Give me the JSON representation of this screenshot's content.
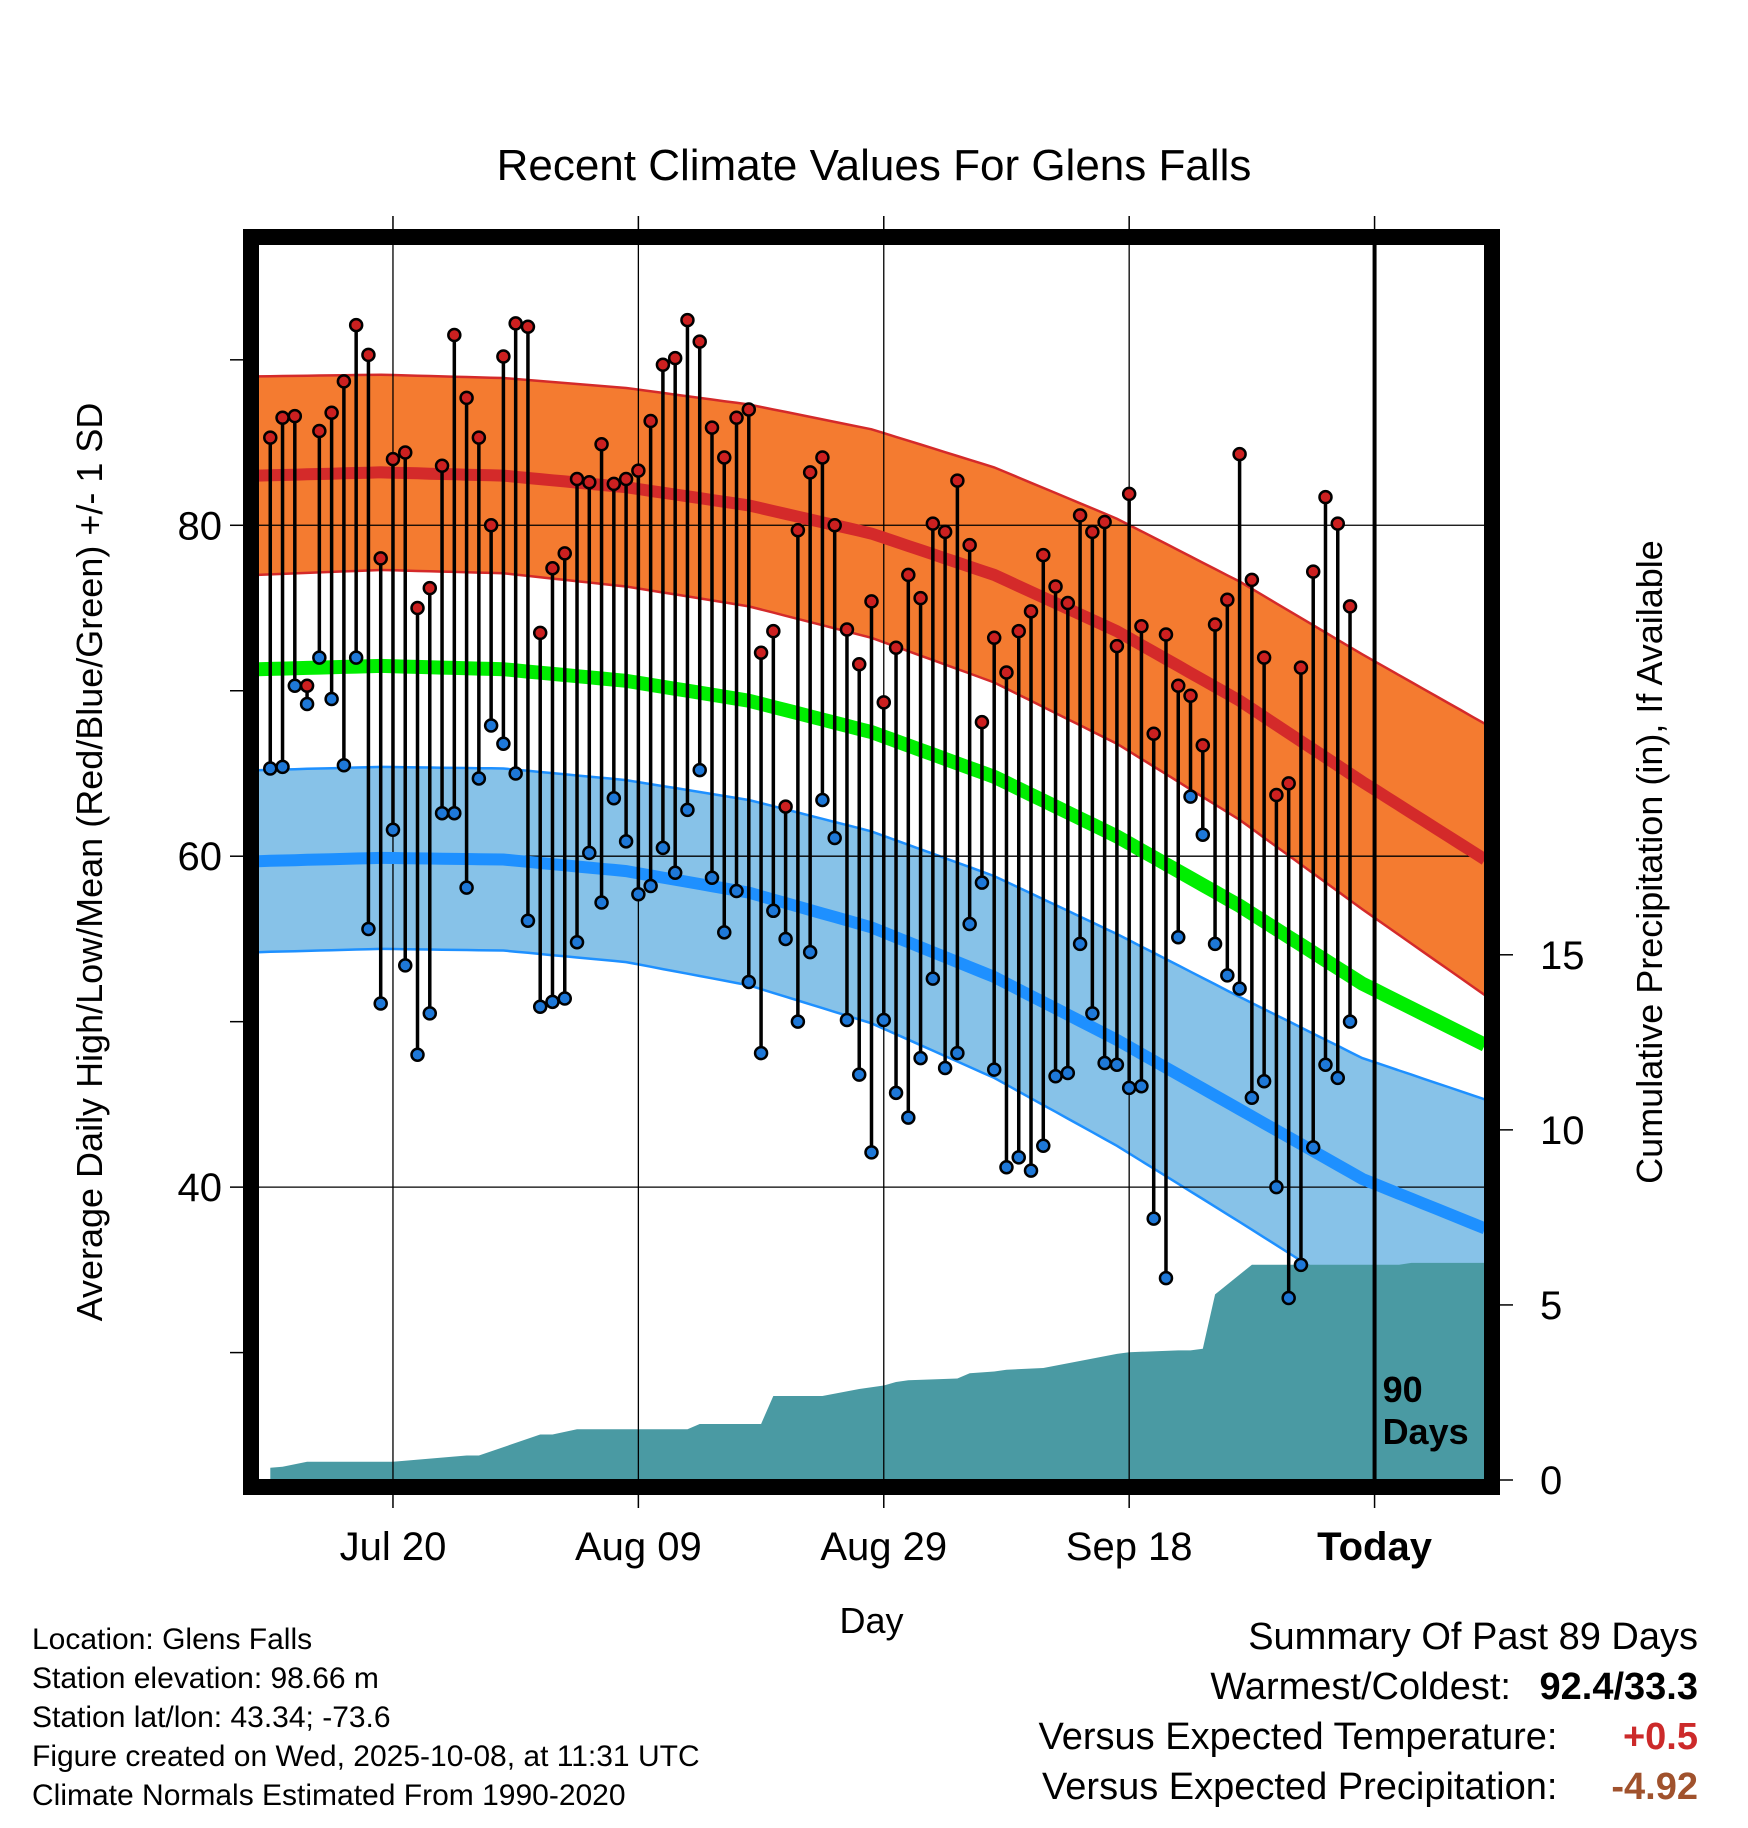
{
  "chart_data": {
    "type": "line",
    "title": "Recent Climate Values For Glens Falls",
    "xlabel": "Day",
    "ylabel": "Average Daily High/Low/Mean (Red/Blue/Green) +/- 1 SD",
    "y2label": "Cumulative Precipitation (in), If Available",
    "x_tick_labels": [
      "Jul 20",
      "Aug 09",
      "Aug 29",
      "Sep 18",
      "Today"
    ],
    "x_tick_days": [
      10,
      30,
      50,
      70,
      90
    ],
    "xlim": [
      -1,
      99
    ],
    "ylim": [
      22.3,
      97.0
    ],
    "y_ticks_labeled": [
      40,
      60,
      80
    ],
    "y_ticks_minor": [
      30,
      50,
      70,
      90
    ],
    "y2_ticks": [
      0,
      5,
      10,
      15
    ],
    "y2lim": [
      0,
      35.3
    ],
    "today_marker_label": "90\nDays",
    "colors": {
      "normal_high_band": "#f47b30",
      "normal_high_line": "#d42a2a",
      "normal_low_band": "#87c2e8",
      "normal_low_line": "#1e90ff",
      "normal_mean_line": "#00ee00",
      "precip_fill": "#4a9aa3",
      "obs_high_dot": "#cc2020",
      "obs_low_dot": "#1e78d8",
      "warm_value": "#cc2a2a",
      "precip_value": "#a0522d"
    },
    "normals": {
      "days": [
        -1,
        9,
        19,
        29,
        39,
        49,
        59,
        69,
        79,
        89,
        99
      ],
      "high": [
        83.0,
        83.2,
        83.0,
        82.3,
        81.2,
        79.5,
        77.0,
        73.6,
        69.4,
        64.5,
        59.8
      ],
      "high_sd": [
        6.0,
        5.9,
        5.9,
        6.0,
        6.1,
        6.3,
        6.5,
        6.8,
        7.2,
        7.7,
        8.2
      ],
      "low": [
        59.7,
        59.9,
        59.8,
        59.1,
        57.8,
        55.7,
        52.7,
        48.9,
        44.7,
        40.5,
        37.5
      ],
      "low_sd": [
        5.5,
        5.5,
        5.5,
        5.5,
        5.6,
        5.8,
        6.1,
        6.4,
        6.8,
        7.3,
        7.8
      ],
      "mean": [
        71.3,
        71.5,
        71.3,
        70.6,
        69.4,
        67.5,
        64.8,
        61.2,
        57.0,
        52.3,
        48.6
      ]
    },
    "series": [
      {
        "name": "Daily High",
        "values": [
          85.3,
          86.5,
          86.6,
          70.3,
          85.7,
          86.8,
          88.7,
          92.1,
          90.3,
          78.0,
          84.0,
          84.4,
          75.0,
          76.2,
          83.6,
          91.5,
          87.7,
          85.3,
          80.0,
          90.2,
          92.2,
          92.0,
          73.5,
          77.4,
          78.3,
          82.8,
          82.6,
          84.9,
          82.5,
          82.8,
          83.3,
          86.3,
          89.7,
          90.1,
          92.4,
          91.1,
          85.9,
          84.1,
          86.5,
          87.0,
          72.3,
          73.6,
          63.0,
          79.7,
          83.2,
          84.1,
          80.0,
          73.7,
          71.6,
          75.4,
          69.3,
          72.6,
          77.0,
          75.6,
          80.1,
          79.6,
          82.7,
          78.8,
          68.1,
          73.2,
          71.1,
          73.6,
          74.8,
          78.2,
          76.3,
          75.3,
          80.6,
          79.6,
          80.2,
          72.7,
          81.9,
          73.9,
          67.4,
          73.4,
          70.3,
          69.7,
          66.7,
          74.0,
          75.5,
          84.3,
          76.7,
          72.0,
          63.7,
          64.4,
          71.4,
          77.2,
          81.7,
          80.1,
          75.1
        ]
      },
      {
        "name": "Daily Low",
        "values": [
          65.3,
          65.4,
          70.3,
          69.2,
          72.0,
          69.5,
          65.5,
          72.0,
          55.6,
          51.1,
          61.6,
          53.4,
          48.0,
          50.5,
          62.6,
          62.6,
          58.1,
          64.7,
          67.9,
          66.8,
          65.0,
          56.1,
          50.9,
          51.2,
          51.4,
          54.8,
          60.2,
          57.2,
          63.5,
          60.9,
          57.7,
          58.2,
          60.5,
          59.0,
          62.8,
          65.2,
          58.7,
          55.4,
          57.9,
          52.4,
          48.1,
          56.7,
          55.0,
          50.0,
          54.2,
          63.4,
          61.1,
          50.1,
          46.8,
          42.1,
          50.1,
          45.7,
          44.2,
          47.8,
          52.6,
          47.2,
          48.1,
          55.9,
          58.4,
          47.1,
          41.2,
          41.8,
          41.0,
          42.5,
          46.7,
          46.9,
          54.7,
          50.5,
          47.5,
          47.4,
          46.0,
          46.1,
          38.1,
          34.5,
          55.1,
          63.6,
          61.3,
          54.7,
          52.8,
          52.0,
          45.4,
          46.4,
          40.0,
          33.3,
          35.3,
          42.4,
          47.4,
          46.6,
          50.0
        ]
      },
      {
        "name": "Cumulative Precipitation",
        "days": [
          0,
          1,
          3,
          10,
          16,
          17,
          22,
          23,
          25,
          34,
          35,
          40,
          41,
          45,
          48,
          50,
          51,
          52,
          56,
          57,
          59,
          60,
          63,
          69,
          70,
          74,
          75,
          76,
          77,
          80,
          92,
          93,
          99
        ],
        "values": [
          0.35,
          0.38,
          0.52,
          0.52,
          0.7,
          0.7,
          1.3,
          1.3,
          1.45,
          1.45,
          1.6,
          1.6,
          2.4,
          2.4,
          2.6,
          2.7,
          2.8,
          2.85,
          2.9,
          3.05,
          3.1,
          3.15,
          3.2,
          3.6,
          3.65,
          3.7,
          3.7,
          3.75,
          5.3,
          6.15,
          6.15,
          6.2,
          6.2
        ]
      }
    ]
  },
  "info": {
    "location": "Location: Glens Falls",
    "elevation": "Station elevation: 98.66 m",
    "latlon": "Station lat/lon: 43.34; -73.6",
    "created": "Figure created on Wed, 2025-10-08, at 11:31 UTC",
    "normals": "Climate Normals Estimated From 1990-2020"
  },
  "summary": {
    "heading": "Summary Of Past 89 Days",
    "warm_cold_label": "Warmest/Coldest:",
    "warm_cold_value": "92.4/33.3",
    "temp_label": "Versus Expected Temperature:",
    "temp_value": "+0.5",
    "precip_label": "Versus Expected Precipitation:",
    "precip_value": "-4.92"
  }
}
